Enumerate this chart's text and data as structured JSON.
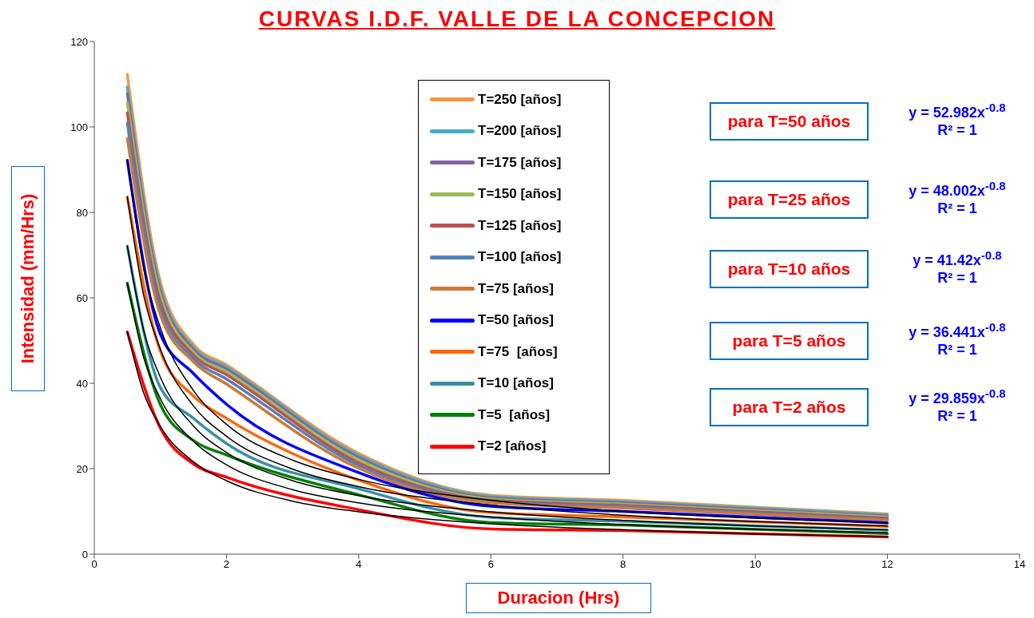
{
  "chart_data": {
    "type": "line",
    "title": "CURVAS I.D.F. VALLE DE LA CONCEPCION",
    "xlabel": "Duracion (Hrs)",
    "ylabel": "Intensidad (mm/Hrs)",
    "x": [
      0.5,
      1,
      1.5,
      2,
      4,
      6,
      8,
      12
    ],
    "xlim": [
      0,
      14
    ],
    "xticks": [
      0,
      2,
      4,
      6,
      8,
      10,
      12,
      14
    ],
    "ylim": [
      0,
      120
    ],
    "yticks": [
      0,
      20,
      40,
      60,
      80,
      100,
      120
    ],
    "legend": "top",
    "annotations": [
      "para T=50 años",
      "para T=25 años",
      "para T=10 años",
      "para T=5 años",
      "para T=2 años",
      "y = 52.982x$^{-0.8}$",
      "y = 48.002x$^{-0.8}$",
      "y = 41.42x$^{-0.8}$",
      "y = 36.441x$^{-0.8}$",
      "y = 29.859x$^{-0.8}$",
      "R² = 1",
      "R² = 1",
      "R² = 1",
      "R² = 1",
      "R² = 1"
    ],
    "series": [
      {
        "name": "T=250 [años]",
        "color": "#f79646",
        "values": [
          112.3,
          63.7,
          49.1,
          44.3,
          23.6,
          13.8,
          12.6,
          9.4
        ]
      },
      {
        "name": "T=200 [años]",
        "color": "#4bacc6",
        "values": [
          109.4,
          62.5,
          48.4,
          43.8,
          23.1,
          13.5,
          12.3,
          9.2
        ]
      },
      {
        "name": "T=175 [años]",
        "color": "#8064a2",
        "values": [
          107.8,
          61.5,
          47.9,
          43.3,
          22.6,
          13.2,
          12.0,
          8.9
        ]
      },
      {
        "name": "T=150 [años]",
        "color": "#9bbb59",
        "values": [
          105.7,
          60.5,
          47.3,
          42.7,
          22.1,
          12.9,
          11.7,
          8.7
        ]
      },
      {
        "name": "T=125 [años]",
        "color": "#c0504d",
        "values": [
          103.3,
          59,
          46.6,
          42,
          21.4,
          12.6,
          11.4,
          8.4
        ]
      },
      {
        "name": "T=100 [años]",
        "color": "#4f81bd",
        "values": [
          100.9,
          57.5,
          45.8,
          41,
          20.8,
          12.3,
          11.1,
          8.1
        ]
      },
      {
        "name": "T=75 [años]",
        "color": "#cc7a3a",
        "values": [
          97.3,
          56,
          45,
          39.8,
          20.1,
          12.0,
          10.8,
          7.9
        ]
      },
      {
        "name": "T=50 [años]",
        "color": "#0000ff",
        "values": [
          92.2,
          51.5,
          42.3,
          35.1,
          19.1,
          11.2,
          10.0,
          7.3
        ]
      },
      {
        "name": "T=75  [años]",
        "color": "#ff6600",
        "values": [
          83.6,
          47.5,
          37,
          31.8,
          17.3,
          9.7,
          8.7,
          6.5
        ]
      },
      {
        "name": "T=10 [años]",
        "color": "#3a8fa6",
        "values": [
          72.1,
          39,
          31.8,
          25.9,
          15.3,
          8.6,
          7.7,
          5.6
        ]
      },
      {
        "name": "T=5  [años]",
        "color": "#008000",
        "values": [
          63.4,
          35,
          26.6,
          23.2,
          13.9,
          7.4,
          6.8,
          4.8
        ]
      },
      {
        "name": "T=2 [años]",
        "color": "#ff0000",
        "values": [
          52,
          29.5,
          21.1,
          18,
          10.4,
          5.9,
          5.5,
          4.0
        ]
      },
      {
        "type": "line",
        "color": "#000000",
        "x": [
          0.5,
          0.75,
          1,
          1.5,
          2,
          3,
          4,
          6,
          8,
          10,
          12
        ],
        "values": [
          92.2,
          66.7,
          53.0,
          38.3,
          30.4,
          22.0,
          17.5,
          12.6,
          10.0,
          8.4,
          7.3
        ]
      },
      {
        "type": "line",
        "color": "#000000",
        "x": [
          0.5,
          0.75,
          1,
          1.5,
          2,
          3,
          4,
          6,
          8,
          10,
          12
        ],
        "values": [
          83.6,
          60.4,
          48.0,
          34.7,
          27.6,
          19.9,
          15.8,
          11.5,
          9.1,
          7.6,
          6.6
        ]
      },
      {
        "type": "line",
        "color": "#000000",
        "x": [
          0.5,
          0.75,
          1,
          1.5,
          2,
          3,
          4,
          6,
          8,
          10,
          12
        ],
        "values": [
          72.1,
          52.2,
          41.4,
          30.0,
          23.8,
          17.2,
          13.7,
          9.9,
          7.9,
          6.6,
          5.7
        ]
      },
      {
        "type": "line",
        "color": "#000000",
        "x": [
          0.5,
          0.75,
          1,
          1.5,
          2,
          3,
          4,
          6,
          8,
          10,
          12
        ],
        "values": [
          63.4,
          45.9,
          36.4,
          26.4,
          20.9,
          15.1,
          12.0,
          8.7,
          6.9,
          5.8,
          5.0
        ]
      },
      {
        "type": "line",
        "color": "#000000",
        "x": [
          0.5,
          0.75,
          1,
          1.5,
          2,
          3,
          4,
          6,
          8,
          10,
          12
        ],
        "values": [
          52.0,
          37.6,
          29.9,
          21.6,
          17.2,
          12.4,
          9.9,
          7.1,
          5.7,
          4.7,
          4.1
        ]
      }
    ]
  }
}
